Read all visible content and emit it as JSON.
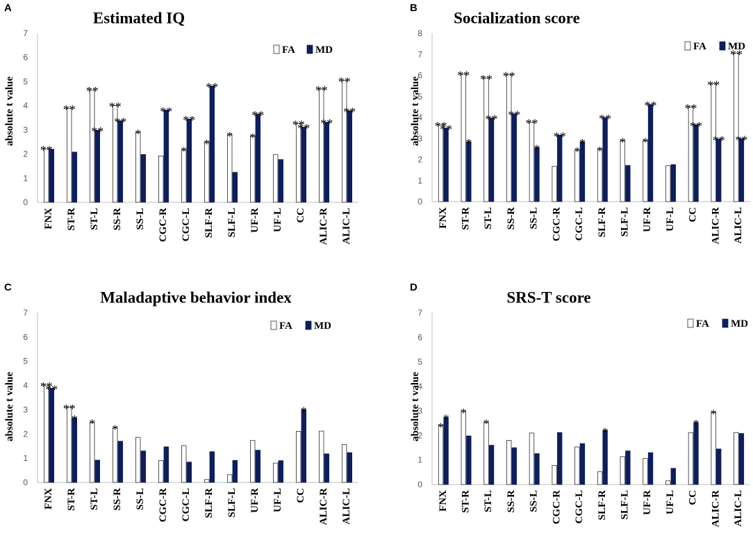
{
  "chart_data": [
    {
      "type": "bar",
      "panel": "A",
      "title": "Estimated IQ",
      "xlabel": "",
      "ylabel": "absolute t value",
      "ylim": [
        0,
        7
      ],
      "yticks": [
        "0",
        "1",
        "2",
        "3",
        "4",
        "5",
        "6",
        "7"
      ],
      "legend_position": "top-right",
      "categories": [
        "FNX",
        "ST-R",
        "ST-L",
        "SS-R",
        "SS-L",
        "CGC-R",
        "CGC-L",
        "SLF-R",
        "SLF-L",
        "UF-R",
        "UF-L",
        "CC",
        "ALIC-R",
        "ALIC-L"
      ],
      "series": [
        {
          "name": "FA",
          "color": "#ffffff",
          "values": [
            2.22,
            3.9,
            4.66,
            4.02,
            2.9,
            1.92,
            2.17,
            2.48,
            2.8,
            2.74,
            1.98,
            3.27,
            4.7,
            5.05
          ],
          "stars": [
            "**",
            "**",
            "**",
            "**",
            "*",
            "",
            "*",
            "*",
            "*",
            "*",
            "",
            "**",
            "**",
            "**"
          ]
        },
        {
          "name": "MD",
          "color": "#0d1e5e",
          "values": [
            2.2,
            2.08,
            2.99,
            3.38,
            1.98,
            3.82,
            3.45,
            4.82,
            1.24,
            3.66,
            1.77,
            3.12,
            3.32,
            3.8
          ],
          "stars": [
            "",
            "",
            "**",
            "**",
            "",
            "**",
            "**",
            "**",
            "",
            "**",
            "",
            "**",
            "**",
            "**"
          ]
        }
      ]
    },
    {
      "type": "bar",
      "panel": "B",
      "title": "Socialization score",
      "xlabel": "",
      "ylabel": "absolute t value",
      "ylim": [
        0,
        8
      ],
      "yticks": [
        "0",
        "1",
        "2",
        "3",
        "4",
        "5",
        "6",
        "7",
        "8"
      ],
      "legend_position": "top-right",
      "categories": [
        "FNX",
        "ST-R",
        "ST-L",
        "SS-R",
        "SS-L",
        "CGC-R",
        "CGC-L",
        "SLF-R",
        "SLF-L",
        "UF-R",
        "UF-L",
        "CC",
        "ALIC-R",
        "ALIC-L"
      ],
      "series": [
        {
          "name": "FA",
          "color": "#ffffff",
          "values": [
            3.65,
            6.06,
            5.88,
            6.03,
            3.78,
            1.68,
            2.44,
            2.48,
            2.9,
            2.9,
            1.71,
            4.5,
            5.6,
            7.05
          ],
          "stars": [
            "**",
            "**",
            "**",
            "**",
            "**",
            "",
            "*",
            "*",
            "*",
            "*",
            "",
            "**",
            "**",
            "**"
          ]
        },
        {
          "name": "MD",
          "color": "#0d1e5e",
          "values": [
            3.5,
            2.84,
            3.98,
            4.18,
            2.56,
            3.16,
            2.84,
            4.0,
            1.72,
            4.62,
            1.76,
            3.66,
            2.98,
            3.0
          ],
          "stars": [
            "**",
            "*",
            "**",
            "**",
            "*",
            "**",
            "*",
            "**",
            "",
            "**",
            "",
            "**",
            "**",
            "**"
          ]
        }
      ]
    },
    {
      "type": "bar",
      "panel": "C",
      "title": "Maladaptive behavior index",
      "xlabel": "",
      "ylabel": "absolute t value",
      "ylim": [
        0,
        7
      ],
      "yticks": [
        "0",
        "1",
        "2",
        "3",
        "4",
        "5",
        "6",
        "7"
      ],
      "legend_position": "top-right",
      "categories": [
        "FNX",
        "ST-R",
        "ST-L",
        "SS-R",
        "SS-L",
        "CGC-R",
        "CGC-L",
        "SLF-R",
        "SLF-L",
        "UF-R",
        "UF-L",
        "CC",
        "ALIC-R",
        "ALIC-L"
      ],
      "series": [
        {
          "name": "FA",
          "color": "#ffffff",
          "values": [
            4.02,
            3.1,
            2.48,
            2.25,
            1.86,
            0.9,
            1.52,
            0.12,
            0.32,
            1.73,
            0.8,
            2.11,
            2.12,
            1.56
          ],
          "stars": [
            "**",
            "**",
            "*",
            "*",
            "",
            "",
            "",
            "",
            "",
            "",
            "",
            "",
            "",
            ""
          ]
        },
        {
          "name": "MD",
          "color": "#0d1e5e",
          "values": [
            3.89,
            2.66,
            0.92,
            1.7,
            1.3,
            1.47,
            0.84,
            1.27,
            0.91,
            1.33,
            0.9,
            3.0,
            1.18,
            1.23
          ],
          "stars": [
            "**",
            "*",
            "",
            "",
            "",
            "",
            "",
            "",
            "",
            "",
            "",
            "*",
            "",
            ""
          ]
        }
      ]
    },
    {
      "type": "bar",
      "panel": "D",
      "title": "SRS-T score",
      "xlabel": "",
      "ylabel": "absolute t value",
      "ylim": [
        0,
        7
      ],
      "yticks": [
        "0",
        "1",
        "2",
        "3",
        "4",
        "5",
        "6",
        "7"
      ],
      "legend_position": "top-right",
      "categories": [
        "FNX",
        "ST-R",
        "ST-L",
        "SS-R",
        "SS-L",
        "CGC-R",
        "CGC-L",
        "SLF-R",
        "SLF-L",
        "UF-R",
        "UF-L",
        "CC",
        "ALIC-R",
        "ALIC-L"
      ],
      "series": [
        {
          "name": "FA",
          "color": "#ffffff",
          "values": [
            2.4,
            2.98,
            2.54,
            1.8,
            2.1,
            0.78,
            1.53,
            0.52,
            1.14,
            1.06,
            0.15,
            2.12,
            2.94,
            2.12
          ],
          "stars": [
            "*",
            "*",
            "*",
            "",
            "",
            "",
            "",
            "",
            "",
            "",
            "",
            "",
            "*",
            ""
          ]
        },
        {
          "name": "MD",
          "color": "#0d1e5e",
          "values": [
            2.73,
            1.98,
            1.6,
            1.5,
            1.26,
            2.12,
            1.67,
            2.2,
            1.37,
            1.3,
            0.66,
            2.52,
            1.45,
            2.08
          ],
          "stars": [
            "*",
            "",
            "",
            "",
            "",
            "",
            "",
            "*",
            "",
            "",
            "",
            "*",
            "",
            ""
          ]
        }
      ]
    }
  ]
}
